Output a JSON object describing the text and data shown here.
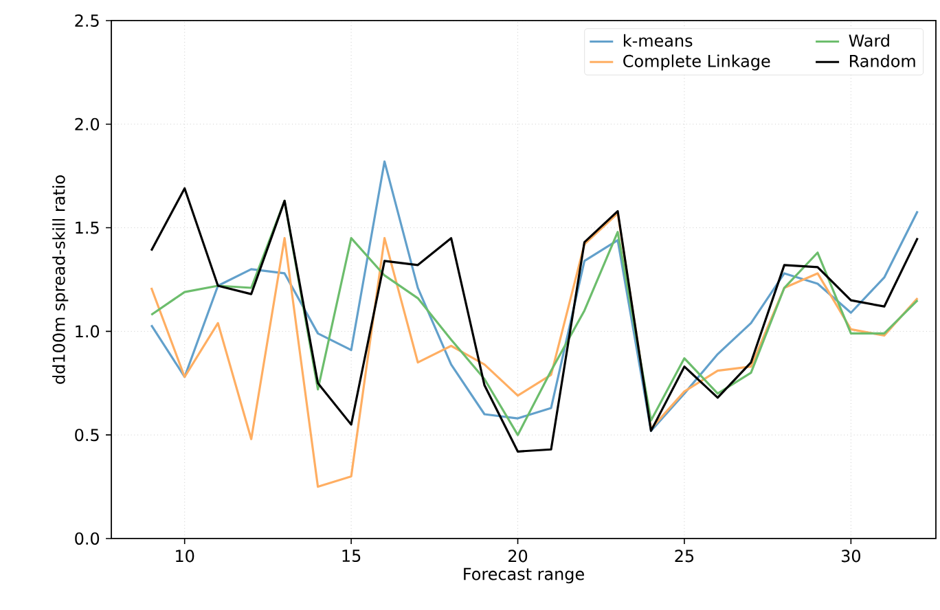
{
  "chart_data": {
    "type": "line",
    "xlabel": "Forecast range",
    "ylabel": "dd100m spread-skill ratio",
    "x": [
      9,
      10,
      11,
      12,
      13,
      14,
      15,
      16,
      17,
      18,
      19,
      20,
      21,
      22,
      23,
      24,
      25,
      26,
      27,
      28,
      29,
      30,
      31,
      32
    ],
    "xlim": [
      7.8,
      32.55
    ],
    "xticks": [
      10,
      15,
      20,
      25,
      30
    ],
    "ylim": [
      0,
      2.5
    ],
    "yticks": [
      {
        "value": 0,
        "label": "0.0"
      },
      {
        "value": 0.5,
        "label": "0.5"
      },
      {
        "value": 1.0,
        "label": "1.0"
      },
      {
        "value": 1.5,
        "label": "1.5"
      },
      {
        "value": 2.0,
        "label": "2.0"
      },
      {
        "value": 2.5,
        "label": "2.5"
      }
    ],
    "grid": true,
    "legend": "top right",
    "marker": "none",
    "line_style": "solid",
    "series": [
      {
        "name": "k-means",
        "color": "#62a0cb",
        "values": [
          1.03,
          0.78,
          1.22,
          1.3,
          1.28,
          0.99,
          0.91,
          1.82,
          1.21,
          0.84,
          0.6,
          0.58,
          0.63,
          1.34,
          1.44,
          0.52,
          0.7,
          0.89,
          1.04,
          1.28,
          1.23,
          1.09,
          1.26,
          1.58
        ]
      },
      {
        "name": "Complete Linkage",
        "color": "#ffae62",
        "values": [
          1.21,
          0.78,
          1.04,
          0.48,
          1.45,
          0.25,
          0.3,
          1.45,
          0.85,
          0.93,
          0.84,
          0.69,
          0.79,
          1.42,
          1.57,
          0.53,
          0.71,
          0.81,
          0.83,
          1.21,
          1.28,
          1.01,
          0.98,
          1.16
        ]
      },
      {
        "name": "Ward",
        "color": "#6cbd6c",
        "values": [
          1.08,
          1.19,
          1.22,
          1.21,
          1.63,
          0.72,
          1.45,
          1.27,
          1.16,
          0.96,
          0.77,
          0.5,
          0.81,
          1.1,
          1.48,
          0.57,
          0.87,
          0.7,
          0.8,
          1.21,
          1.38,
          0.99,
          0.99,
          1.15
        ]
      },
      {
        "name": "Random",
        "color": "#000000",
        "values": [
          1.39,
          1.69,
          1.22,
          1.18,
          1.63,
          0.75,
          0.55,
          1.34,
          1.32,
          1.45,
          0.74,
          0.42,
          0.43,
          1.43,
          1.58,
          0.52,
          0.83,
          0.68,
          0.85,
          1.32,
          1.31,
          1.15,
          1.12,
          1.45
        ]
      }
    ]
  }
}
